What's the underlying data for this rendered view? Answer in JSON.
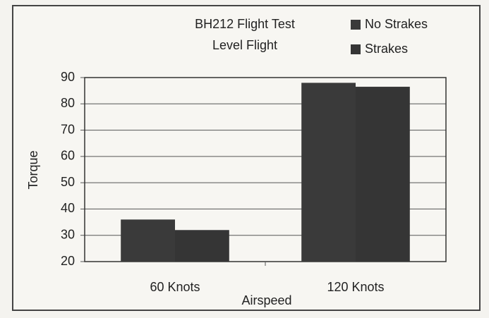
{
  "chart_data": {
    "type": "bar",
    "title": "BH212 Flight Test",
    "subtitle": "Level Flight",
    "x_label": "Airspeed",
    "y_label": "Torque",
    "categories": [
      "60 Knots",
      "120 Knots"
    ],
    "series": [
      {
        "name": "No Strakes",
        "color": "#3a3a3a",
        "values": [
          36,
          88
        ]
      },
      {
        "name": "Strakes",
        "color": "#353535",
        "values": [
          32,
          86.5
        ]
      }
    ],
    "ylim": [
      20,
      90
    ],
    "yticks": [
      20,
      30,
      40,
      50,
      60,
      70,
      80,
      90
    ],
    "grid": true,
    "legend": "top-right"
  }
}
